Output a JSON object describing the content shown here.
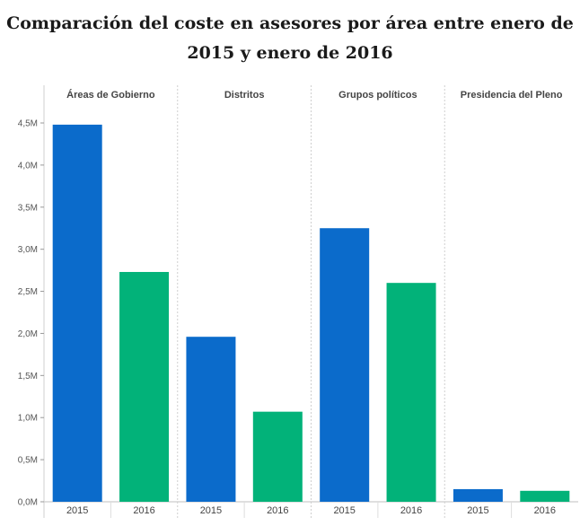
{
  "chart_data": {
    "type": "bar",
    "title": "Comparación del coste en asesores por área entre enero de 2015 y enero de 2016",
    "xlabel": "",
    "ylabel": "",
    "ylim": [
      0,
      4.7
    ],
    "y_ticks": [
      0,
      0.5,
      1.0,
      1.5,
      2.0,
      2.5,
      3.0,
      3.5,
      4.0,
      4.5
    ],
    "y_tick_labels": [
      "0,0M",
      "0,5M",
      "1,0M",
      "1,5M",
      "2,0M",
      "2,5M",
      "3,0M",
      "3,5M",
      "4,0M",
      "4,5M"
    ],
    "panels": [
      {
        "label": "Áreas de Gobierno",
        "categories": [
          "2015",
          "2016"
        ],
        "values": [
          4.48,
          2.73
        ]
      },
      {
        "label": "Distritos",
        "categories": [
          "2015",
          "2016"
        ],
        "values": [
          1.96,
          1.07
        ]
      },
      {
        "label": "Grupos políticos",
        "categories": [
          "2015",
          "2016"
        ],
        "values": [
          3.25,
          2.6
        ]
      },
      {
        "label": "Presidencia del Pleno",
        "categories": [
          "2015",
          "2016"
        ],
        "values": [
          0.15,
          0.13
        ]
      }
    ],
    "series": [
      {
        "name": "2015",
        "color": "#0b6bcb"
      },
      {
        "name": "2016",
        "color": "#02b279"
      }
    ],
    "grid": false
  }
}
